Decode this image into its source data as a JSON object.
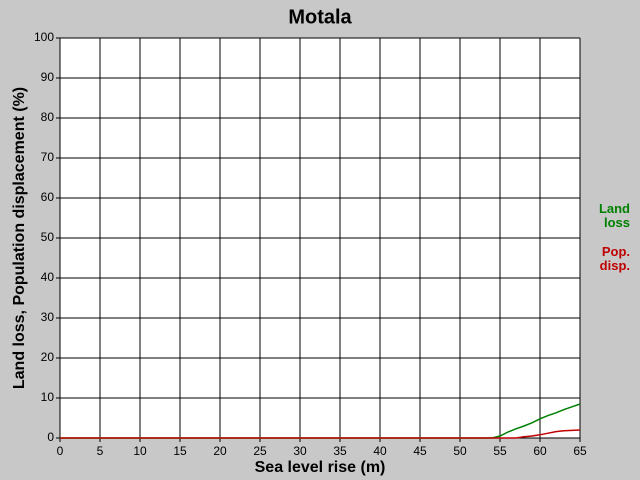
{
  "chart_data": {
    "type": "line",
    "title": "Motala",
    "xlabel": "Sea level rise (m)",
    "ylabel": "Land loss, Population displacement (%)",
    "x": [
      0,
      54,
      55,
      56,
      57,
      58,
      59,
      60,
      61,
      62,
      63,
      64,
      65
    ],
    "series": [
      {
        "name": "Land loss",
        "color": "#008000",
        "values": [
          0,
          0,
          0.5,
          1.5,
          2.3,
          3,
          3.8,
          4.8,
          5.6,
          6.3,
          7.1,
          7.8,
          8.5
        ]
      },
      {
        "name": "Pop. disp.",
        "color": "#c00000",
        "values": [
          0,
          0,
          0,
          0,
          0,
          0.3,
          0.5,
          0.8,
          1.2,
          1.6,
          1.8,
          1.9,
          2
        ]
      }
    ],
    "xlim": [
      0,
      65
    ],
    "xticks": [
      0,
      5,
      10,
      15,
      20,
      25,
      30,
      35,
      40,
      45,
      50,
      55,
      60,
      65
    ],
    "ylim": [
      0,
      100
    ],
    "yticks": [
      0,
      10,
      20,
      30,
      40,
      50,
      60,
      70,
      80,
      90,
      100
    ],
    "grid": true,
    "legend": "right"
  }
}
